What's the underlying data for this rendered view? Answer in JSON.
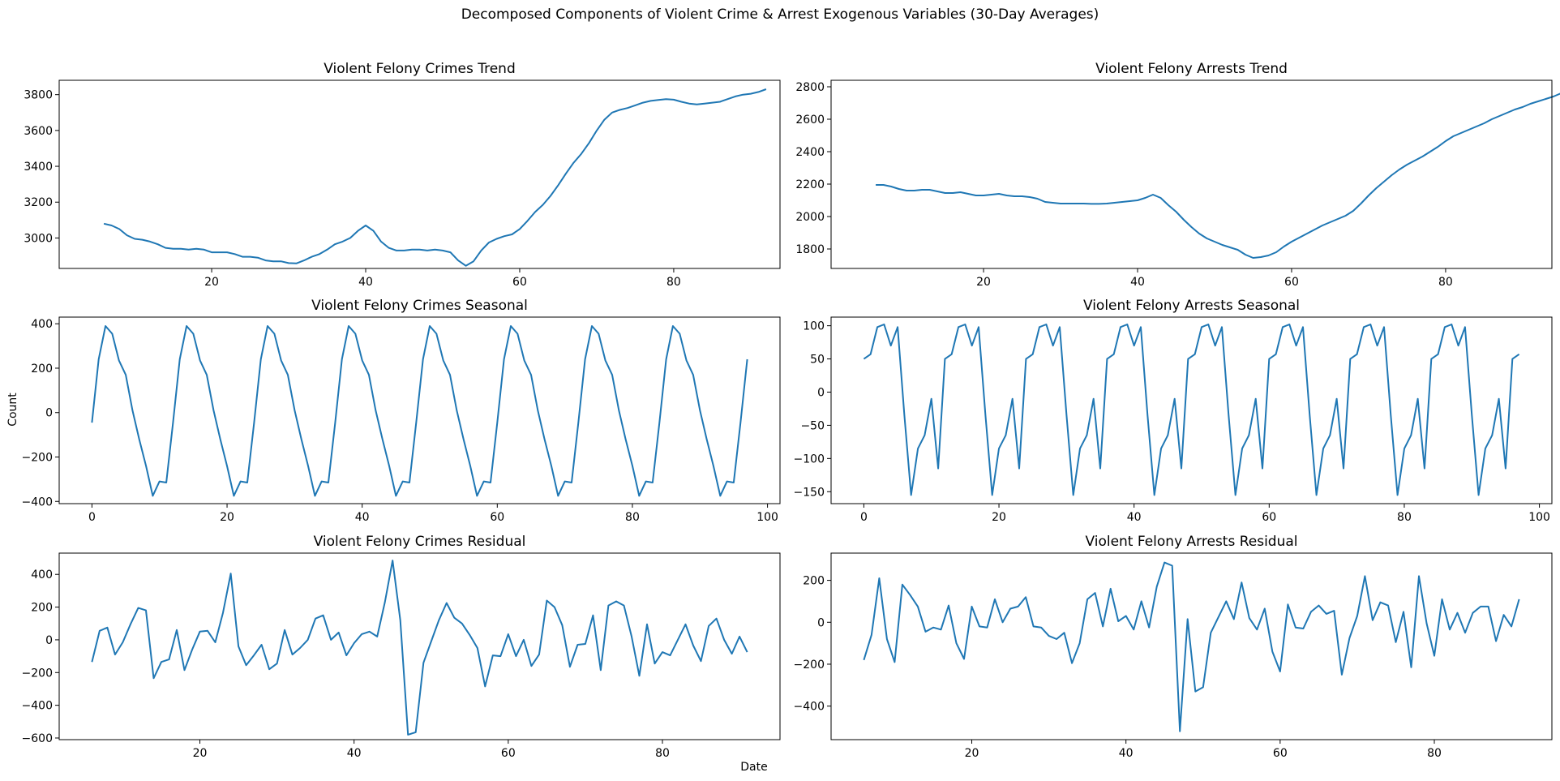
{
  "figure": {
    "suptitle": "Decomposed Components of Violent Crime & Arrest Exogenous Variables (30-Day Averages)",
    "ylabel": "Count",
    "xlabel": "Date",
    "line_color": "#1f77b4"
  },
  "chart_data": [
    {
      "type": "line",
      "title": "Violent Felony Crimes Trend",
      "xlim": [
        0.2,
        93.8
      ],
      "ylim": [
        2830,
        3880
      ],
      "xticks": [
        20,
        40,
        60,
        80
      ],
      "yticks": [
        3000,
        3200,
        3400,
        3600,
        3800
      ],
      "x0": 6,
      "values": [
        3080,
        3070,
        3050,
        3015,
        2995,
        2990,
        2980,
        2965,
        2945,
        2940,
        2940,
        2935,
        2940,
        2935,
        2920,
        2920,
        2920,
        2910,
        2895,
        2895,
        2890,
        2875,
        2870,
        2870,
        2860,
        2858,
        2875,
        2895,
        2910,
        2935,
        2965,
        2980,
        3000,
        3040,
        3070,
        3040,
        2980,
        2945,
        2930,
        2930,
        2935,
        2935,
        2930,
        2935,
        2930,
        2920,
        2875,
        2845,
        2870,
        2930,
        2975,
        2995,
        3010,
        3020,
        3050,
        3095,
        3145,
        3185,
        3235,
        3295,
        3360,
        3420,
        3470,
        3530,
        3600,
        3660,
        3700,
        3715,
        3725,
        3740,
        3755,
        3765,
        3770,
        3775,
        3772,
        3760,
        3750,
        3745,
        3750,
        3755,
        3760,
        3775,
        3790,
        3800,
        3805,
        3815,
        3830
      ]
    },
    {
      "type": "line",
      "title": "Violent Felony Arrests Trend",
      "xlim": [
        0.2,
        93.8
      ],
      "ylim": [
        1680,
        2840
      ],
      "xticks": [
        20,
        40,
        60,
        80
      ],
      "yticks": [
        1800,
        2000,
        2200,
        2400,
        2600,
        2800
      ],
      "x0": 6,
      "values": [
        2195,
        2195,
        2185,
        2170,
        2160,
        2160,
        2165,
        2165,
        2155,
        2145,
        2145,
        2150,
        2140,
        2130,
        2130,
        2135,
        2140,
        2130,
        2125,
        2125,
        2120,
        2110,
        2090,
        2085,
        2080,
        2080,
        2080,
        2080,
        2078,
        2078,
        2080,
        2085,
        2090,
        2095,
        2100,
        2115,
        2135,
        2115,
        2070,
        2030,
        1980,
        1935,
        1895,
        1865,
        1845,
        1825,
        1810,
        1795,
        1765,
        1745,
        1750,
        1760,
        1780,
        1815,
        1845,
        1870,
        1895,
        1920,
        1945,
        1965,
        1985,
        2005,
        2035,
        2080,
        2130,
        2175,
        2215,
        2255,
        2290,
        2320,
        2345,
        2370,
        2400,
        2430,
        2465,
        2495,
        2515,
        2535,
        2555,
        2575,
        2600,
        2620,
        2640,
        2660,
        2675,
        2695,
        2710,
        2725,
        2740,
        2760,
        2780
      ]
    },
    {
      "type": "line",
      "title": "Violent Felony Crimes Seasonal",
      "xlim": [
        -4.85,
        101.85
      ],
      "ylim": [
        -410,
        430
      ],
      "xticks": [
        0,
        20,
        40,
        60,
        80,
        100
      ],
      "yticks": [
        -400,
        -200,
        0,
        200,
        400
      ],
      "x0": 0,
      "period": 12,
      "count": 98,
      "pattern": [
        -45,
        240,
        390,
        355,
        235,
        170,
        10,
        -120,
        -240,
        -375,
        -310,
        -315
      ]
    },
    {
      "type": "line",
      "title": "Violent Felony Arrests Seasonal",
      "xlim": [
        -4.85,
        101.85
      ],
      "ylim": [
        -168,
        113
      ],
      "xticks": [
        0,
        20,
        40,
        60,
        80,
        100
      ],
      "yticks": [
        -150,
        -100,
        -50,
        0,
        50,
        100
      ],
      "x0": 0,
      "period": 12,
      "count": 98,
      "pattern": [
        50,
        57,
        98,
        102,
        70,
        98,
        -35,
        -155,
        -85,
        -65,
        -10,
        -115
      ]
    },
    {
      "type": "line",
      "title": "Violent Felony Crimes Residual",
      "xlim": [
        1.75,
        95.25
      ],
      "ylim": [
        -610,
        530
      ],
      "xticks": [
        20,
        40,
        60,
        80
      ],
      "yticks": [
        -600,
        -400,
        -200,
        0,
        200,
        400
      ],
      "x0": 6,
      "values": [
        -135,
        55,
        75,
        -90,
        -15,
        95,
        195,
        180,
        -235,
        -135,
        -120,
        60,
        -185,
        -60,
        50,
        55,
        -15,
        165,
        405,
        -40,
        -155,
        -95,
        -30,
        -180,
        -145,
        60,
        -90,
        -50,
        0,
        130,
        150,
        0,
        45,
        -95,
        -20,
        35,
        50,
        20,
        230,
        485,
        120,
        -580,
        -565,
        -140,
        -10,
        120,
        225,
        135,
        100,
        30,
        -50,
        -285,
        -95,
        -100,
        35,
        -100,
        0,
        -160,
        -90,
        240,
        200,
        90,
        -165,
        -30,
        -25,
        150,
        -185,
        210,
        235,
        210,
        20,
        -220,
        95,
        -145,
        -75,
        -95,
        0,
        95,
        -35,
        -130,
        85,
        130,
        0,
        -85,
        20,
        -75
      ]
    },
    {
      "type": "line",
      "title": "Violent Felony Arrests Residual",
      "xlim": [
        1.75,
        95.25
      ],
      "ylim": [
        -560,
        330
      ],
      "xticks": [
        20,
        40,
        60,
        80
      ],
      "yticks": [
        -400,
        -200,
        0,
        200
      ],
      "x0": 6,
      "values": [
        -180,
        -60,
        210,
        -80,
        -190,
        180,
        130,
        75,
        -45,
        -25,
        -35,
        80,
        -100,
        -175,
        75,
        -20,
        -25,
        110,
        0,
        65,
        75,
        120,
        -20,
        -25,
        -65,
        -80,
        -50,
        -195,
        -100,
        110,
        140,
        -20,
        160,
        5,
        30,
        -35,
        100,
        -25,
        170,
        285,
        270,
        -520,
        15,
        -330,
        -310,
        -50,
        25,
        100,
        15,
        190,
        20,
        -35,
        65,
        -140,
        -235,
        85,
        -25,
        -30,
        50,
        80,
        40,
        55,
        -250,
        -75,
        30,
        220,
        10,
        95,
        80,
        -95,
        50,
        -215,
        220,
        -5,
        -160,
        110,
        -35,
        45,
        -50,
        45,
        75,
        75,
        -90,
        35,
        -20,
        110
      ]
    }
  ]
}
